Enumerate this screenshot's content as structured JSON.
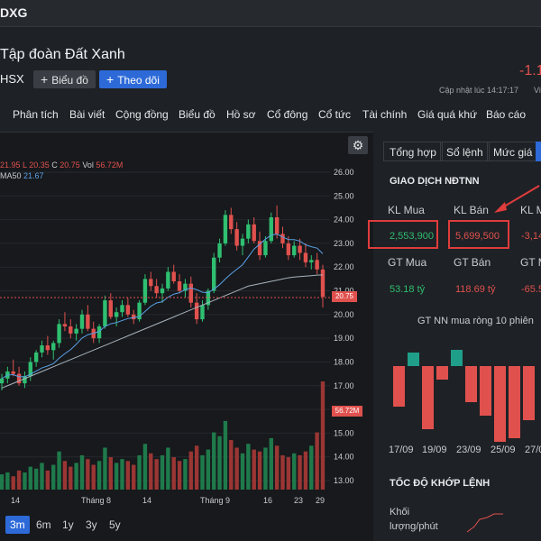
{
  "header": {
    "ticker": "DXG",
    "company_name": "Tập đoàn Đất Xanh",
    "price_change": "-1.1",
    "exchange": "HSX",
    "chart_button": "Biểu đồ",
    "follow_button": "Theo dõi",
    "updated_text": "Cập nhật lúc  14:17:17",
    "updated_suffix": "Vi"
  },
  "nav": [
    "Phân tích",
    "Bài viết",
    "Cộng đồng",
    "Biểu đồ",
    "Hồ sơ",
    "Cổ đông",
    "Cổ tức",
    "Tài chính",
    "Giá quá khứ",
    "Báo cáo"
  ],
  "chart": {
    "legend_ohlc_prefix": "21.95  L",
    "legend_low": "20.35",
    "legend_close_label": "C",
    "legend_close": "20.75",
    "legend_vol_label": "Vol",
    "legend_vol": "56.72M",
    "legend_ma_label": "MA50",
    "legend_ma_value": "21.67",
    "price_tag": "20.75",
    "volume_tag": "56.72M",
    "ranges": [
      "3m",
      "6m",
      "1y",
      "3y",
      "5y"
    ],
    "active_range": "3m"
  },
  "chart_data": {
    "type": "candlestick",
    "title": "",
    "y_ticks": [
      "26.00",
      "25.00",
      "24.00",
      "23.00",
      "22.00",
      "21.00",
      "20.00",
      "19.00",
      "18.00",
      "17.00",
      "16.00",
      "15.00",
      "14.00",
      "13.00"
    ],
    "x_ticks": [
      "14",
      "Tháng 8",
      "14",
      "Tháng 9",
      "16",
      "23",
      "29"
    ],
    "ylim": [
      12.6,
      26.2
    ],
    "last_close": 20.75,
    "last_volume": "56.72M",
    "ma50_last": 21.67,
    "candles": [
      [
        17.1,
        17.5,
        16.8,
        17.3
      ],
      [
        17.3,
        17.8,
        17.1,
        17.6
      ],
      [
        17.6,
        18.1,
        17.4,
        17.5
      ],
      [
        17.5,
        17.8,
        17.0,
        17.1
      ],
      [
        17.1,
        17.6,
        16.9,
        17.4
      ],
      [
        17.4,
        18.2,
        17.2,
        18.0
      ],
      [
        18.0,
        18.5,
        17.8,
        18.4
      ],
      [
        18.4,
        18.9,
        18.2,
        18.7
      ],
      [
        18.7,
        19.1,
        18.3,
        18.5
      ],
      [
        18.5,
        18.9,
        18.1,
        18.8
      ],
      [
        18.8,
        19.8,
        18.6,
        19.6
      ],
      [
        19.6,
        20.1,
        19.3,
        19.5
      ],
      [
        19.5,
        19.8,
        19.0,
        19.2
      ],
      [
        19.2,
        19.6,
        18.9,
        19.4
      ],
      [
        19.4,
        20.2,
        19.2,
        20.0
      ],
      [
        20.0,
        20.4,
        19.3,
        19.4
      ],
      [
        19.4,
        19.7,
        18.8,
        19.0
      ],
      [
        19.0,
        19.6,
        18.8,
        19.5
      ],
      [
        19.5,
        20.8,
        19.4,
        20.6
      ],
      [
        20.6,
        20.9,
        19.8,
        19.9
      ],
      [
        19.9,
        20.3,
        19.5,
        20.1
      ],
      [
        20.1,
        20.6,
        19.9,
        20.4
      ],
      [
        20.4,
        20.7,
        19.9,
        20.0
      ],
      [
        20.0,
        20.2,
        19.6,
        19.8
      ],
      [
        19.8,
        20.6,
        19.7,
        20.5
      ],
      [
        20.5,
        21.7,
        20.4,
        21.5
      ],
      [
        21.5,
        21.8,
        21.0,
        21.2
      ],
      [
        21.2,
        21.5,
        20.7,
        20.9
      ],
      [
        20.9,
        21.3,
        20.5,
        21.1
      ],
      [
        21.1,
        22.0,
        21.0,
        21.8
      ],
      [
        21.8,
        22.1,
        21.3,
        21.4
      ],
      [
        21.4,
        21.7,
        20.9,
        21.0
      ],
      [
        21.0,
        21.5,
        20.7,
        21.3
      ],
      [
        21.3,
        21.6,
        20.3,
        20.5
      ],
      [
        20.5,
        20.9,
        19.6,
        19.8
      ],
      [
        19.8,
        20.6,
        19.7,
        20.4
      ],
      [
        20.4,
        21.1,
        20.2,
        21.0
      ],
      [
        21.0,
        22.6,
        20.9,
        22.4
      ],
      [
        22.4,
        23.2,
        22.2,
        23.0
      ],
      [
        23.0,
        24.4,
        22.9,
        24.2
      ],
      [
        24.2,
        24.5,
        23.4,
        23.6
      ],
      [
        23.6,
        23.9,
        22.7,
        22.9
      ],
      [
        22.9,
        23.4,
        22.5,
        23.2
      ],
      [
        23.2,
        24.0,
        23.0,
        23.8
      ],
      [
        23.8,
        24.1,
        23.0,
        23.1
      ],
      [
        23.1,
        23.5,
        22.3,
        22.5
      ],
      [
        22.5,
        23.3,
        22.4,
        23.1
      ],
      [
        23.1,
        24.3,
        23.0,
        24.1
      ],
      [
        24.1,
        24.6,
        23.2,
        23.4
      ],
      [
        23.4,
        23.7,
        22.8,
        23.0
      ],
      [
        23.0,
        23.3,
        22.3,
        22.5
      ],
      [
        22.5,
        23.1,
        22.4,
        22.9
      ],
      [
        22.9,
        23.2,
        22.3,
        22.6
      ],
      [
        22.6,
        23.0,
        22.0,
        22.2
      ],
      [
        22.2,
        22.5,
        21.9,
        22.3
      ],
      [
        22.3,
        22.6,
        21.7,
        21.9
      ],
      [
        21.9,
        22.1,
        20.3,
        20.75
      ]
    ],
    "volumes_m": [
      8,
      9,
      7,
      10,
      9,
      12,
      11,
      14,
      10,
      13,
      20,
      15,
      12,
      14,
      18,
      16,
      13,
      15,
      22,
      17,
      14,
      16,
      15,
      13,
      18,
      24,
      19,
      16,
      18,
      22,
      17,
      15,
      16,
      20,
      23,
      18,
      21,
      30,
      28,
      36,
      26,
      22,
      19,
      24,
      21,
      20,
      22,
      27,
      23,
      18,
      17,
      19,
      18,
      20,
      23,
      30,
      56.72
    ],
    "ma50": [
      16.9,
      17.0,
      17.1,
      17.2,
      17.3,
      17.4,
      17.5,
      17.6,
      17.7,
      17.8,
      17.9,
      18.0,
      18.1,
      18.2,
      18.3,
      18.4,
      18.5,
      18.6,
      18.7,
      18.8,
      18.9,
      19.0,
      19.1,
      19.2,
      19.3,
      19.4,
      19.5,
      19.6,
      19.7,
      19.8,
      19.9,
      20.0,
      20.1,
      20.2,
      20.3,
      20.4,
      20.5,
      20.6,
      20.7,
      20.8,
      20.9,
      21.0,
      21.1,
      21.2,
      21.25,
      21.3,
      21.35,
      21.4,
      21.45,
      21.5,
      21.55,
      21.58,
      21.6,
      21.62,
      21.64,
      21.66,
      21.67
    ]
  },
  "foreign": {
    "tabs": [
      "Tổng hợp",
      "Sổ lệnh",
      "Mức giá"
    ],
    "section_title": "GIAO DỊCH NĐTNN",
    "buy_vol_label": "KL Mua",
    "sell_vol_label": "KL Bán",
    "net_vol_label": "KL M",
    "buy_vol": "2,553,900",
    "sell_vol": "5,699,500",
    "net_vol": "-3,14",
    "buy_val_label": "GT Mua",
    "sell_val_label": "GT Bán",
    "net_val_label": "GT M",
    "buy_val": "53.18 tỷ",
    "sell_val": "118.69 tỷ",
    "net_val": "-65.5",
    "net_chart_title": "GT NN mua ròng 10 phiên",
    "net_chart_dates": [
      "17/09",
      "19/09",
      "23/09",
      "25/09",
      "27/0"
    ],
    "speed_title": "TỐC ĐỘ KHỚP LỆNH",
    "speed_label": "Khối lượng/phút"
  },
  "net_bars": [
    -45,
    15,
    -70,
    -15,
    18,
    -40,
    -55,
    -85,
    -80,
    -60
  ],
  "colors": {
    "up": "#2fbf71",
    "down": "#e0514e",
    "accent": "#2d6ad8",
    "ma": "#5aa0e6",
    "ma50": "#a8b3bd"
  }
}
